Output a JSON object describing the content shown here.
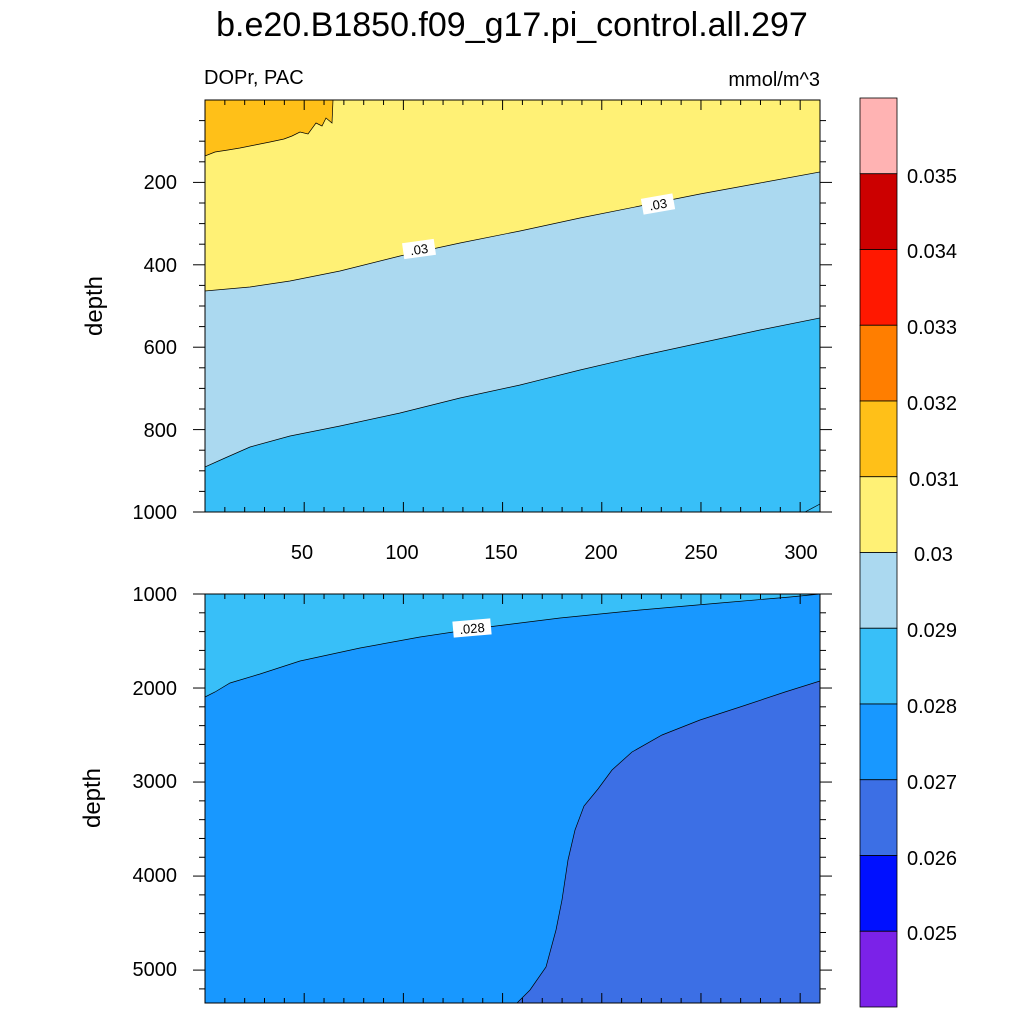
{
  "chart_data": {
    "type": "contour",
    "title": "b.e20.B1850.f09_g17.pi_control.all.297",
    "left_string": "DOPr, PAC",
    "right_string": "mmol/m^3",
    "panels": [
      {
        "name": "upper",
        "ylabel": "depth",
        "ylim": [
          0,
          1000
        ],
        "y_reversed": true,
        "xlim": [
          0,
          310
        ],
        "x_ticks": [
          50,
          100,
          150,
          200,
          250,
          300
        ],
        "y_ticks": [
          200,
          400,
          600,
          800,
          1000
        ],
        "regions": [
          {
            "level": "0.030-0.031",
            "color": "#FFF175",
            "boundary_depth": [
              {
                "x": 0,
                "y": 465
              },
              {
                "x": 100,
                "y": 360
              },
              {
                "x": 200,
                "y": 265
              },
              {
                "x": 310,
                "y": 175
              }
            ]
          },
          {
            "level": "0.029-0.030",
            "color": "#ABD9F0",
            "boundary_depth": [
              {
                "x": 0,
                "y": 900
              },
              {
                "x": 100,
                "y": 760
              },
              {
                "x": 200,
                "y": 640
              },
              {
                "x": 310,
                "y": 525
              }
            ]
          },
          {
            "level": "0.028-0.029",
            "color": "#38BFF8"
          },
          {
            "level": "0.031-0.032",
            "color": "#FFC018",
            "extent": "x 0-65, depth 0-135"
          }
        ],
        "contour_labels": [
          {
            "text": ".03",
            "x": 107,
            "y": 385
          },
          {
            "text": ".03",
            "x": 227,
            "y": 255
          }
        ]
      },
      {
        "name": "lower",
        "ylabel": "depth",
        "ylim": [
          1000,
          5350
        ],
        "y_reversed": true,
        "y_ticks": [
          1000,
          2000,
          3000,
          4000,
          5000
        ],
        "regions": [
          {
            "level": "0.028-0.029",
            "color": "#38BFF8",
            "boundary_depth": [
              {
                "x": 0,
                "y": 2050
              },
              {
                "x": 100,
                "y": 1450
              },
              {
                "x": 200,
                "y": 1200
              },
              {
                "x": 310,
                "y": 1000
              }
            ]
          },
          {
            "level": "0.027-0.028",
            "color": "#1898FF"
          },
          {
            "level": "0.026-0.027",
            "color": "#3C6FE5",
            "boundary_depth": [
              {
                "x": 157,
                "y": 5350
              },
              {
                "x": 185,
                "y": 4000
              },
              {
                "x": 220,
                "y": 2900
              },
              {
                "x": 310,
                "y": 1930
              }
            ]
          }
        ],
        "contour_labels": [
          {
            "text": ".028",
            "x": 133,
            "y": 1370
          }
        ]
      }
    ],
    "colorbar": {
      "labels": [
        "0.025",
        "0.026",
        "0.027",
        "0.028",
        "0.029",
        "0.03",
        "0.031",
        "0.032",
        "0.033",
        "0.034",
        "0.035"
      ],
      "colors": [
        "#FFB3B3",
        "#CC0000",
        "#FF1800",
        "#FF7E00",
        "#FFC018",
        "#FFF175",
        "#ABD9F0",
        "#38BFF8",
        "#1898FF",
        "#3C6FE5",
        "#0010FF",
        "#7B22E8"
      ]
    }
  }
}
